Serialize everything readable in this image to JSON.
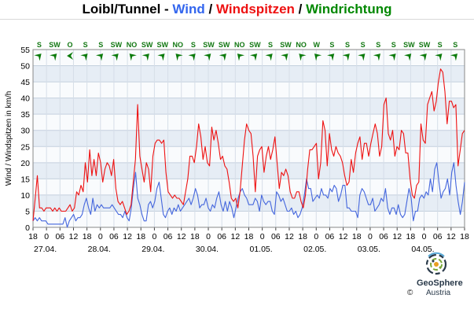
{
  "header": {
    "title_parts": [
      {
        "text": "Loibl/Tunnel - ",
        "color": "#000000"
      },
      {
        "text": "Wind",
        "color": "#3366ee"
      },
      {
        "text": " / ",
        "color": "#000000"
      },
      {
        "text": "Windspitzen",
        "color": "#ee1111"
      },
      {
        "text": " / ",
        "color": "#000000"
      },
      {
        "text": "Windrichtung",
        "color": "#008800"
      }
    ]
  },
  "chart_data": {
    "type": "line",
    "ylabel": "Wind / Windspitzen in km/h",
    "ylim": [
      0,
      55
    ],
    "y_ticks": [
      0,
      5,
      10,
      15,
      20,
      25,
      30,
      35,
      40,
      45,
      50,
      55
    ],
    "x_unit": "hours",
    "xlim": [
      0,
      192
    ],
    "x_tick_labels": [
      "18",
      "0",
      "06",
      "12",
      "18",
      "0",
      "06",
      "12",
      "18",
      "0",
      "06",
      "12",
      "18",
      "0",
      "06",
      "12",
      "18",
      "0",
      "06",
      "12",
      "18",
      "0",
      "06",
      "12",
      "18",
      "0",
      "06",
      "12",
      "18",
      "0",
      "06",
      "12",
      "18",
      "0",
      "06"
    ],
    "date_labels": [
      "27.04.",
      "28.04.",
      "29.04.",
      "30.04.",
      "01.05.",
      "02.05.",
      "03.05.",
      "04.05."
    ],
    "grid": true,
    "series": [
      {
        "name": "Windspitzen",
        "color": "#ee1111",
        "values": [
          2,
          9,
          16,
          6,
          6,
          5,
          6,
          6,
          6,
          5,
          6,
          5,
          6,
          5,
          5,
          5,
          6,
          7,
          5,
          6,
          11,
          10,
          13,
          11,
          20,
          14,
          24,
          16,
          21,
          16,
          23,
          20,
          14,
          18,
          20,
          19,
          16,
          21,
          12,
          8,
          7,
          8,
          6,
          4,
          5,
          7,
          14,
          21,
          38,
          22,
          18,
          14,
          20,
          18,
          11,
          22,
          26,
          27,
          27,
          26,
          27,
          17,
          11,
          10,
          9,
          10,
          9,
          9,
          8,
          7,
          11,
          15,
          22,
          22,
          20,
          25,
          32,
          28,
          21,
          25,
          20,
          19,
          31,
          27,
          30,
          26,
          21,
          22,
          19,
          18,
          14,
          9,
          8,
          9,
          6,
          11,
          19,
          27,
          32,
          30,
          29,
          22,
          11,
          22,
          24,
          25,
          17,
          22,
          25,
          21,
          24,
          28,
          20,
          12,
          17,
          16,
          18,
          16,
          11,
          9,
          9,
          11,
          11,
          8,
          6,
          10,
          18,
          24,
          24,
          25,
          26,
          15,
          20,
          33,
          30,
          19,
          29,
          24,
          22,
          25,
          23,
          22,
          20,
          16,
          13,
          14,
          21,
          17,
          23,
          26,
          28,
          21,
          26,
          26,
          22,
          26,
          29,
          32,
          29,
          22,
          25,
          38,
          40,
          29,
          27,
          30,
          22,
          25,
          24,
          30,
          29,
          23,
          23,
          15,
          10,
          9,
          13,
          14,
          32,
          27,
          26,
          38,
          40,
          42,
          36,
          39,
          45,
          49,
          48,
          42,
          32,
          39,
          39,
          37,
          38,
          19,
          24,
          29,
          30
        ]
      },
      {
        "name": "Wind",
        "color": "#4466dd",
        "values": [
          2,
          3,
          2,
          3,
          2,
          2,
          2,
          1,
          1,
          1,
          1,
          1,
          1,
          1,
          1,
          3,
          0,
          2,
          3,
          4,
          2,
          3,
          3,
          4,
          7,
          9,
          6,
          4,
          9,
          5,
          7,
          6,
          7,
          6,
          6,
          6,
          6,
          7,
          6,
          5,
          4,
          4,
          3,
          5,
          3,
          2,
          6,
          12,
          17,
          9,
          7,
          4,
          2,
          2,
          7,
          8,
          6,
          8,
          12,
          14,
          9,
          4,
          3,
          5,
          6,
          4,
          6,
          5,
          7,
          5,
          6,
          7,
          8,
          9,
          7,
          9,
          12,
          10,
          6,
          7,
          7,
          9,
          6,
          5,
          7,
          6,
          9,
          11,
          7,
          5,
          8,
          5,
          8,
          6,
          3,
          6,
          9,
          11,
          12,
          10,
          9,
          7,
          7,
          7,
          9,
          8,
          5,
          10,
          8,
          7,
          8,
          8,
          5,
          4,
          11,
          10,
          8,
          9,
          7,
          5,
          5,
          6,
          4,
          5,
          3,
          4,
          6,
          10,
          15,
          12,
          12,
          8,
          9,
          10,
          9,
          12,
          10,
          10,
          9,
          12,
          11,
          13,
          12,
          8,
          10,
          13,
          13,
          6,
          6,
          5,
          5,
          5,
          3,
          10,
          12,
          11,
          9,
          7,
          7,
          9,
          5,
          6,
          7,
          9,
          8,
          12,
          6,
          4,
          6,
          6,
          4,
          7,
          4,
          3,
          4,
          8,
          12,
          9,
          2,
          5,
          5,
          9,
          10,
          9,
          11,
          10,
          15,
          11,
          18,
          20,
          14,
          9,
          11,
          12,
          15,
          10,
          17,
          20,
          13,
          8,
          4,
          8,
          14
        ]
      }
    ],
    "direction_labels": [
      "S",
      "SW",
      "O",
      "S",
      "S",
      "SW",
      "NO",
      "SW",
      "SW",
      "NO",
      "S",
      "SW",
      "SW",
      "NO",
      "SW",
      "S",
      "SW",
      "NO",
      "W",
      "S",
      "S",
      "S",
      "S",
      "S",
      "SW",
      "SW",
      "S",
      "S"
    ]
  },
  "brand": {
    "name": "GeoSphere",
    "country": "Austria",
    "copyright": "©",
    "logo_colors": [
      "#2a3a4a",
      "#e8a020",
      "#7aa83a",
      "#5aa9d6"
    ]
  }
}
